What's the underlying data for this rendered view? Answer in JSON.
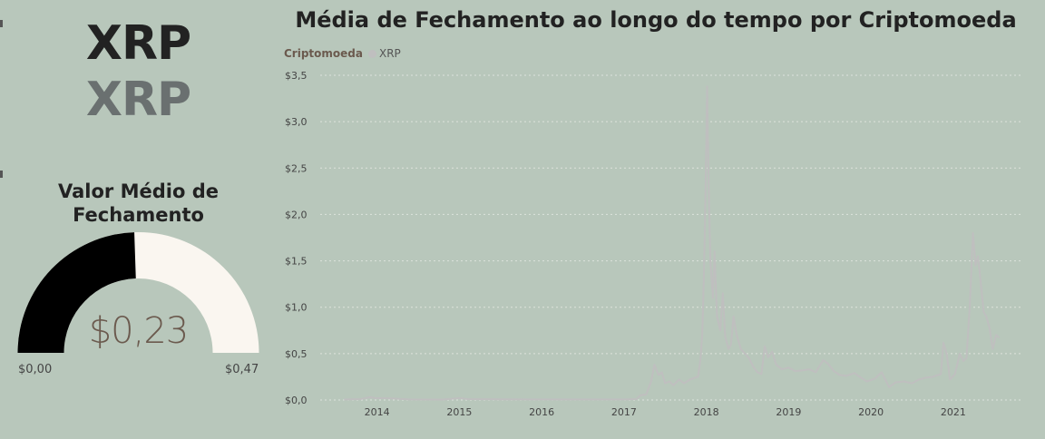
{
  "ticker": {
    "main": "XRP",
    "sub": "XRP"
  },
  "gauge": {
    "title": "Valor Médio de Fechamento",
    "value_label": "$0,23",
    "min_label": "$0,00",
    "max_label": "$0,47",
    "value": 0.23,
    "min": 0,
    "max": 0.47,
    "colors": {
      "fill": "#000000",
      "track": "#faf6f0"
    }
  },
  "chart_data": {
    "type": "line",
    "title": "Média de Fechamento ao longo do tempo por Criptomoeda",
    "legend_title": "Criptomoeda",
    "legend_placement": "top-left",
    "grid": true,
    "ylim": [
      0,
      3.5
    ],
    "xlim": [
      2013.6,
      2021.56
    ],
    "y_ticks": [
      {
        "value": 0,
        "label": "$0,0"
      },
      {
        "value": 0.5,
        "label": "$0,5"
      },
      {
        "value": 1.0,
        "label": "$1,0"
      },
      {
        "value": 1.5,
        "label": "$1,5"
      },
      {
        "value": 2.0,
        "label": "$2,0"
      },
      {
        "value": 2.5,
        "label": "$2,5"
      },
      {
        "value": 3.0,
        "label": "$3,0"
      },
      {
        "value": 3.5,
        "label": "$3,5"
      }
    ],
    "x_ticks": [
      {
        "value": 2014,
        "label": "2014"
      },
      {
        "value": 2015,
        "label": "2015"
      },
      {
        "value": 2016,
        "label": "2016"
      },
      {
        "value": 2017,
        "label": "2017"
      },
      {
        "value": 2018,
        "label": "2018"
      },
      {
        "value": 2019,
        "label": "2019"
      },
      {
        "value": 2020,
        "label": "2020"
      },
      {
        "value": 2021,
        "label": "2021"
      }
    ],
    "series": [
      {
        "name": "XRP",
        "color": "#bfbfbf",
        "points": [
          [
            2013.6,
            0.006
          ],
          [
            2013.8,
            0.01
          ],
          [
            2013.92,
            0.03
          ],
          [
            2013.98,
            0.02
          ],
          [
            2014.1,
            0.02
          ],
          [
            2014.4,
            0.006
          ],
          [
            2014.8,
            0.005
          ],
          [
            2015.0,
            0.02
          ],
          [
            2015.1,
            0.01
          ],
          [
            2015.5,
            0.008
          ],
          [
            2016.0,
            0.006
          ],
          [
            2016.5,
            0.006
          ],
          [
            2017.0,
            0.006
          ],
          [
            2017.15,
            0.01
          ],
          [
            2017.2,
            0.05
          ],
          [
            2017.27,
            0.06
          ],
          [
            2017.33,
            0.2
          ],
          [
            2017.37,
            0.38
          ],
          [
            2017.42,
            0.27
          ],
          [
            2017.46,
            0.3
          ],
          [
            2017.5,
            0.18
          ],
          [
            2017.55,
            0.2
          ],
          [
            2017.6,
            0.16
          ],
          [
            2017.67,
            0.22
          ],
          [
            2017.73,
            0.18
          ],
          [
            2017.8,
            0.22
          ],
          [
            2017.86,
            0.24
          ],
          [
            2017.9,
            0.25
          ],
          [
            2017.93,
            0.45
          ],
          [
            2017.95,
            0.7
          ],
          [
            2017.97,
            1.3
          ],
          [
            2017.99,
            2.2
          ],
          [
            2018.01,
            3.38
          ],
          [
            2018.03,
            2.3
          ],
          [
            2018.05,
            1.5
          ],
          [
            2018.08,
            1.1
          ],
          [
            2018.1,
            1.6
          ],
          [
            2018.13,
            0.9
          ],
          [
            2018.17,
            0.75
          ],
          [
            2018.2,
            1.15
          ],
          [
            2018.23,
            0.68
          ],
          [
            2018.27,
            0.55
          ],
          [
            2018.3,
            0.6
          ],
          [
            2018.33,
            0.9
          ],
          [
            2018.37,
            0.7
          ],
          [
            2018.42,
            0.55
          ],
          [
            2018.47,
            0.5
          ],
          [
            2018.52,
            0.45
          ],
          [
            2018.57,
            0.36
          ],
          [
            2018.62,
            0.3
          ],
          [
            2018.67,
            0.28
          ],
          [
            2018.71,
            0.58
          ],
          [
            2018.75,
            0.46
          ],
          [
            2018.8,
            0.52
          ],
          [
            2018.85,
            0.38
          ],
          [
            2018.92,
            0.33
          ],
          [
            2019.0,
            0.35
          ],
          [
            2019.08,
            0.31
          ],
          [
            2019.17,
            0.32
          ],
          [
            2019.25,
            0.33
          ],
          [
            2019.33,
            0.3
          ],
          [
            2019.42,
            0.43
          ],
          [
            2019.48,
            0.39
          ],
          [
            2019.55,
            0.31
          ],
          [
            2019.62,
            0.27
          ],
          [
            2019.7,
            0.26
          ],
          [
            2019.8,
            0.29
          ],
          [
            2019.88,
            0.24
          ],
          [
            2019.95,
            0.2
          ],
          [
            2020.05,
            0.23
          ],
          [
            2020.13,
            0.3
          ],
          [
            2020.18,
            0.21
          ],
          [
            2020.22,
            0.14
          ],
          [
            2020.3,
            0.19
          ],
          [
            2020.4,
            0.2
          ],
          [
            2020.5,
            0.18
          ],
          [
            2020.58,
            0.22
          ],
          [
            2020.66,
            0.24
          ],
          [
            2020.75,
            0.25
          ],
          [
            2020.85,
            0.28
          ],
          [
            2020.88,
            0.62
          ],
          [
            2020.92,
            0.5
          ],
          [
            2020.96,
            0.22
          ],
          [
            2021.02,
            0.28
          ],
          [
            2021.08,
            0.5
          ],
          [
            2021.12,
            0.42
          ],
          [
            2021.16,
            0.45
          ],
          [
            2021.2,
            1.0
          ],
          [
            2021.24,
            1.8
          ],
          [
            2021.27,
            1.45
          ],
          [
            2021.3,
            1.55
          ],
          [
            2021.33,
            1.3
          ],
          [
            2021.37,
            0.95
          ],
          [
            2021.4,
            0.9
          ],
          [
            2021.44,
            0.78
          ],
          [
            2021.48,
            0.55
          ],
          [
            2021.52,
            0.7
          ],
          [
            2021.56,
            0.67
          ]
        ]
      }
    ]
  }
}
